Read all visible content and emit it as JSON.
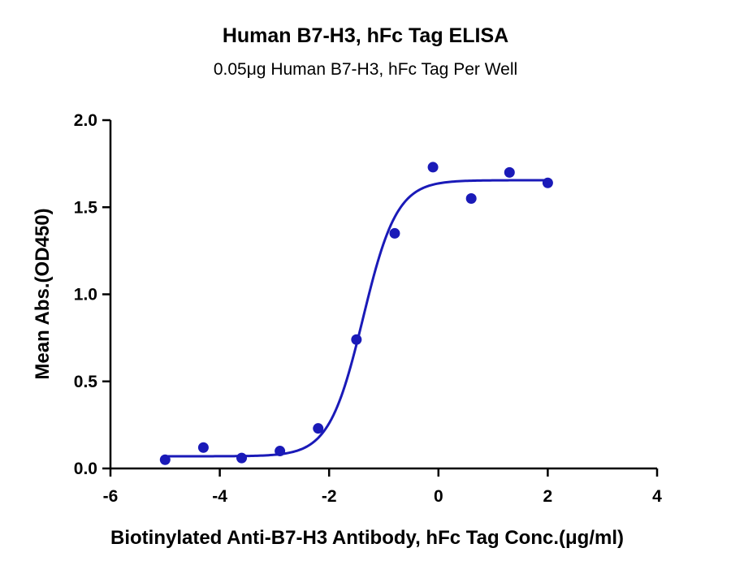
{
  "chart_data": {
    "type": "scatter",
    "title": "Human B7-H3, hFc Tag ELISA",
    "subtitle": "0.05μg Human B7-H3, hFc Tag Per Well",
    "xlabel": "Biotinylated Anti-B7-H3 Antibody, hFc Tag Conc.(μg/ml)",
    "ylabel": "Mean Abs.(OD450)",
    "xlim": [
      -6,
      4
    ],
    "ylim": [
      0,
      2.0
    ],
    "xticks": [
      -6,
      -4,
      -2,
      0,
      2,
      4
    ],
    "yticks": [
      0.0,
      0.5,
      1.0,
      1.5,
      2.0
    ],
    "xtick_labels": [
      "-6",
      "-4",
      "-2",
      "0",
      "2",
      "4"
    ],
    "ytick_labels": [
      "0.0",
      "0.5",
      "1.0",
      "1.5",
      "2.0"
    ],
    "grid": false,
    "series": [
      {
        "x": [
          -5.0,
          -4.3,
          -3.6,
          -2.9,
          -2.2,
          -1.5,
          -0.8,
          -0.1,
          0.6,
          1.3,
          2.0
        ],
        "y": [
          0.05,
          0.12,
          0.06,
          0.1,
          0.23,
          0.74,
          1.35,
          1.73,
          1.55,
          1.7,
          1.64
        ],
        "color": "#1a1ab8",
        "fit": {
          "model": "4PL",
          "bottom": 0.07,
          "top": 1.655,
          "log_ec50": -1.38,
          "hill": 1.4,
          "x_range": [
            -5.0,
            2.0
          ]
        }
      }
    ]
  }
}
